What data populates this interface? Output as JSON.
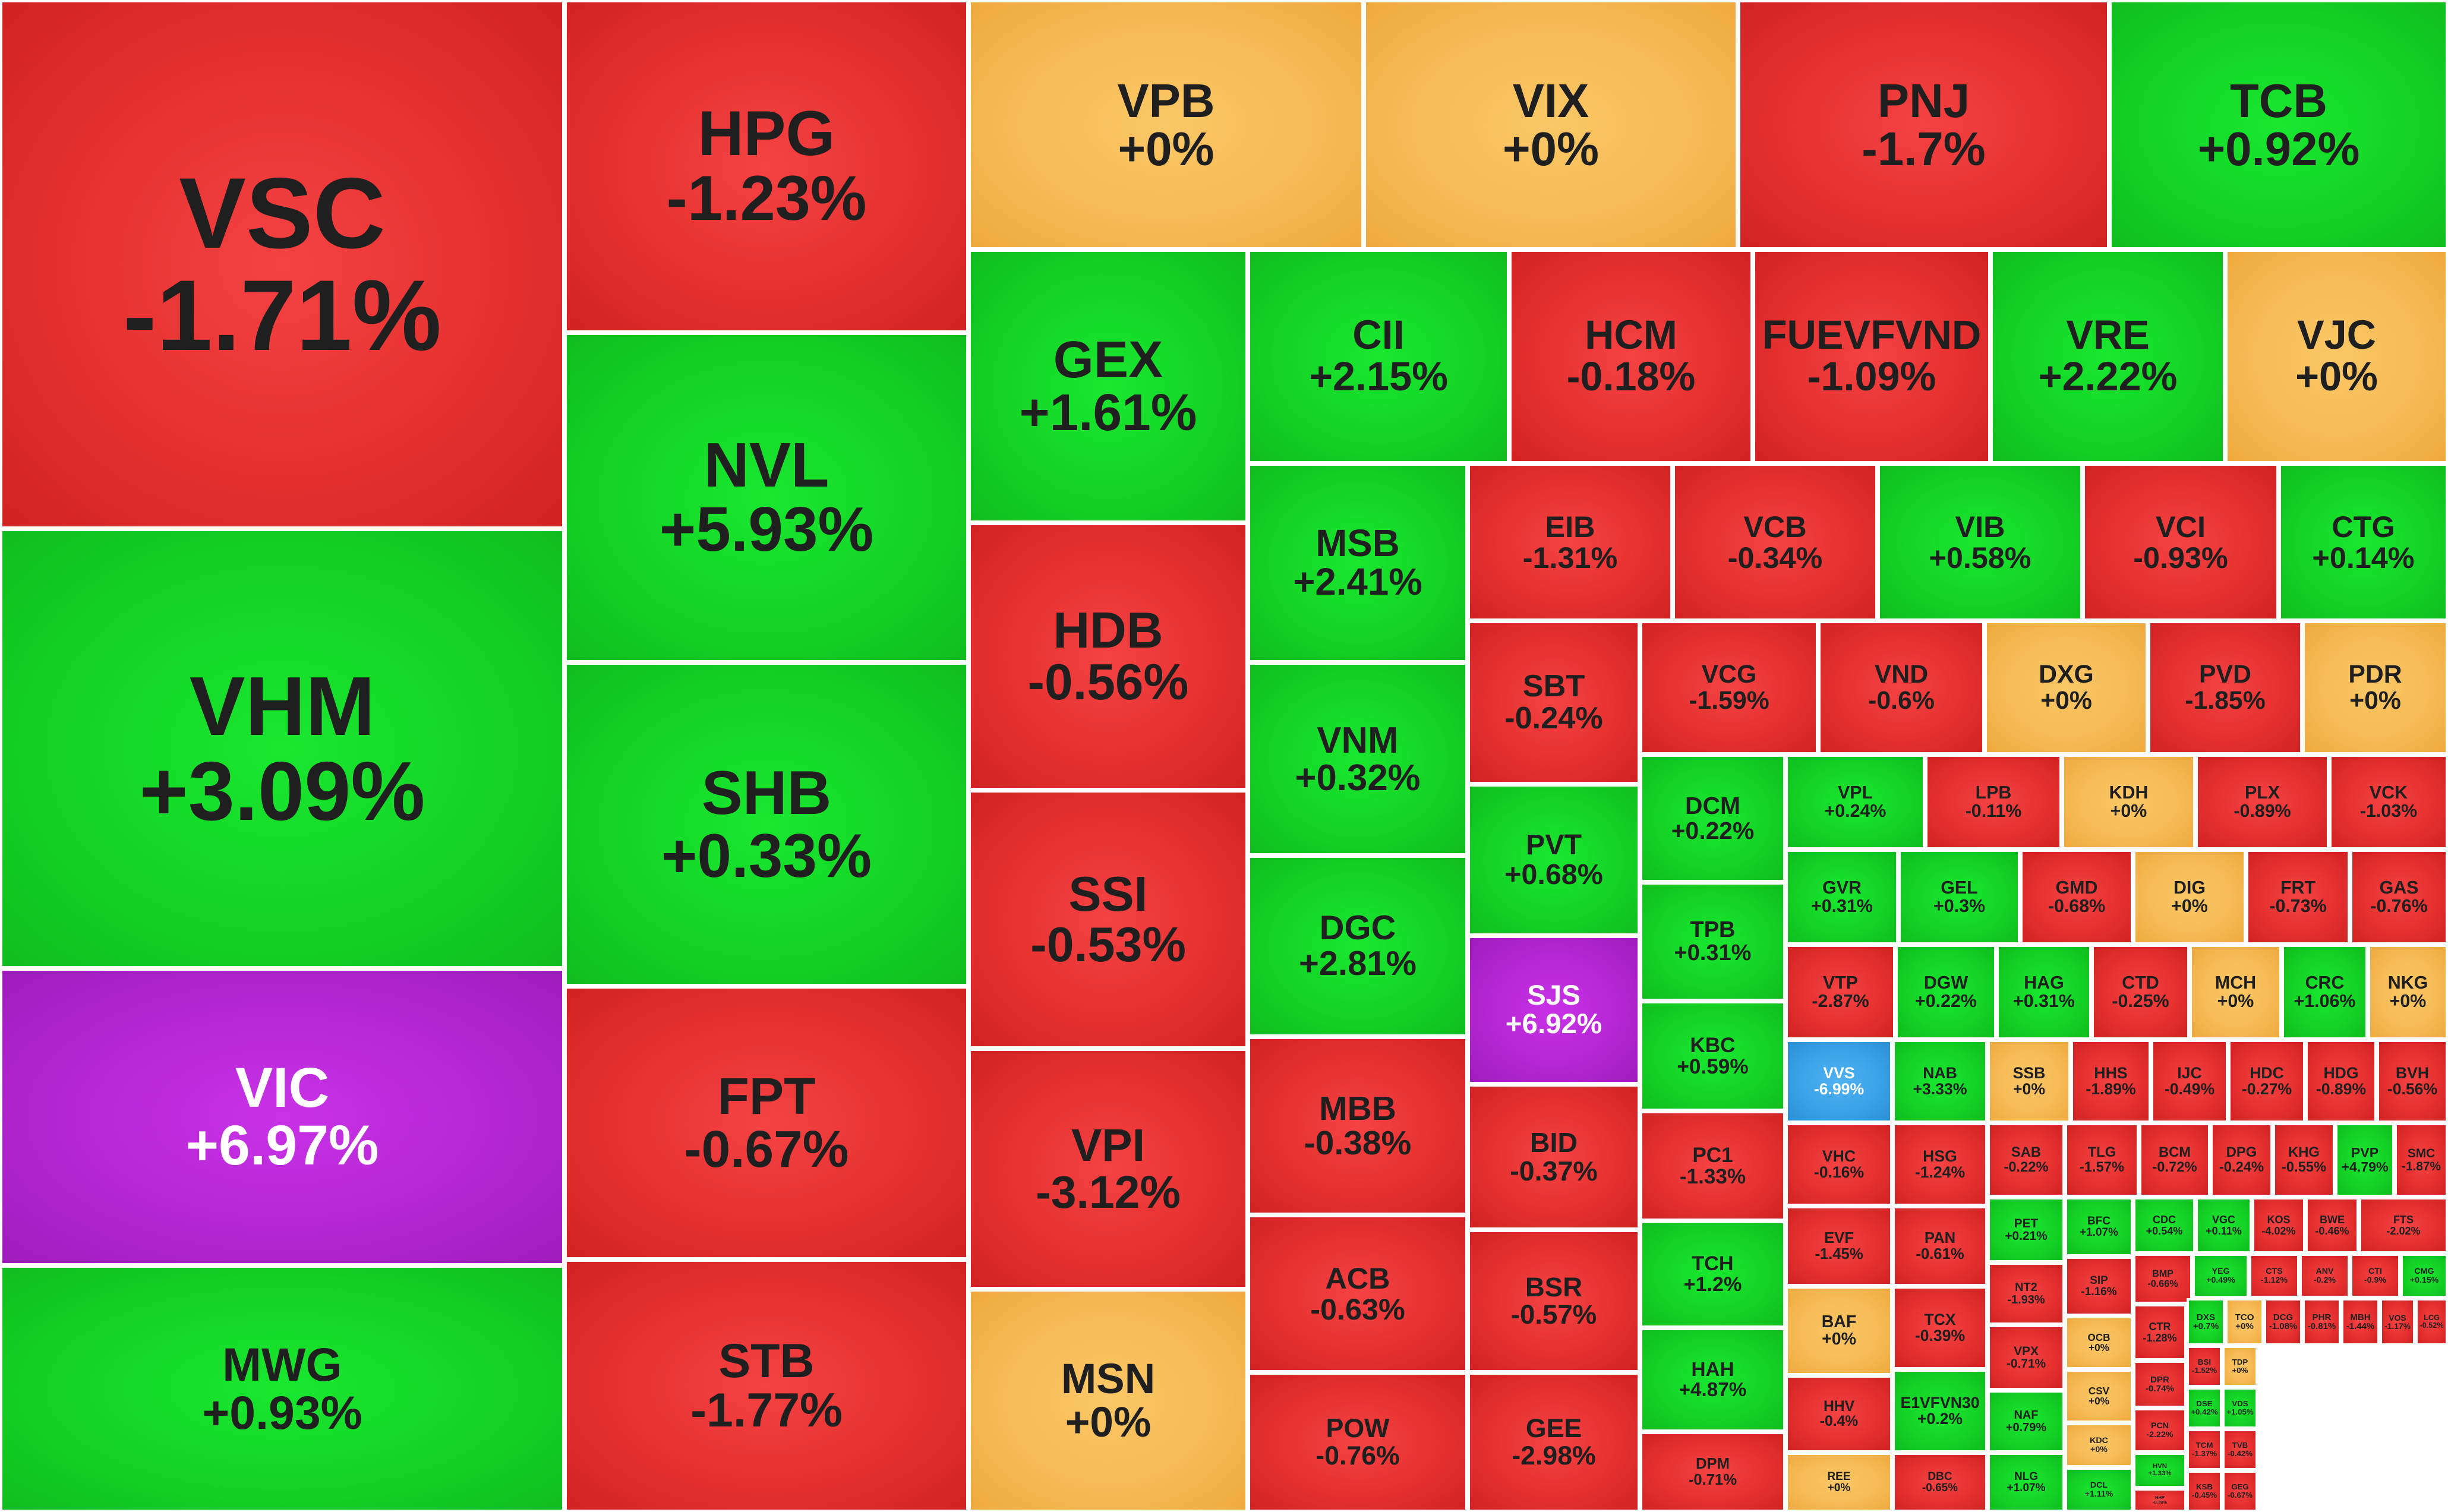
{
  "chart_data": {
    "type": "treemap",
    "title": "",
    "colors": {
      "positive": "#14d326",
      "negative": "#e63030",
      "unchanged": "#f6bb55",
      "ceiling": "#b526d4",
      "floor": "#3aa3e8"
    },
    "tiles": [
      {
        "ticker": "VSC",
        "change": "-1.71%"
      },
      {
        "ticker": "VHM",
        "change": "+3.09%"
      },
      {
        "ticker": "VIC",
        "change": "+6.97%"
      },
      {
        "ticker": "MWG",
        "change": "+0.93%"
      },
      {
        "ticker": "HPG",
        "change": "-1.23%"
      },
      {
        "ticker": "NVL",
        "change": "+5.93%"
      },
      {
        "ticker": "SHB",
        "change": "+0.33%"
      },
      {
        "ticker": "FPT",
        "change": "-0.67%"
      },
      {
        "ticker": "STB",
        "change": "-1.77%"
      },
      {
        "ticker": "VPB",
        "change": "+0%"
      },
      {
        "ticker": "VIX",
        "change": "+0%"
      },
      {
        "ticker": "PNJ",
        "change": "-1.7%"
      },
      {
        "ticker": "TCB",
        "change": "+0.92%"
      },
      {
        "ticker": "GEX",
        "change": "+1.61%"
      },
      {
        "ticker": "HDB",
        "change": "-0.56%"
      },
      {
        "ticker": "SSI",
        "change": "-0.53%"
      },
      {
        "ticker": "VPI",
        "change": "-3.12%"
      },
      {
        "ticker": "MSN",
        "change": "+0%"
      },
      {
        "ticker": "CII",
        "change": "+2.15%"
      },
      {
        "ticker": "HCM",
        "change": "-0.18%"
      },
      {
        "ticker": "FUEVFVND",
        "change": "-1.09%"
      },
      {
        "ticker": "VRE",
        "change": "+2.22%"
      },
      {
        "ticker": "VJC",
        "change": "+0%"
      },
      {
        "ticker": "MSB",
        "change": "+2.41%"
      },
      {
        "ticker": "VNM",
        "change": "+0.32%"
      },
      {
        "ticker": "DGC",
        "change": "+2.81%"
      },
      {
        "ticker": "MBB",
        "change": "-0.38%"
      },
      {
        "ticker": "ACB",
        "change": "-0.63%"
      },
      {
        "ticker": "POW",
        "change": "-0.76%"
      },
      {
        "ticker": "EIB",
        "change": "-1.31%"
      },
      {
        "ticker": "VCB",
        "change": "-0.34%"
      },
      {
        "ticker": "VIB",
        "change": "+0.58%"
      },
      {
        "ticker": "VCI",
        "change": "-0.93%"
      },
      {
        "ticker": "CTG",
        "change": "+0.14%"
      },
      {
        "ticker": "SBT",
        "change": "-0.24%"
      },
      {
        "ticker": "PVT",
        "change": "+0.68%"
      },
      {
        "ticker": "SJS",
        "change": "+6.92%"
      },
      {
        "ticker": "BID",
        "change": "-0.37%"
      },
      {
        "ticker": "BSR",
        "change": "-0.57%"
      },
      {
        "ticker": "GEE",
        "change": "-2.98%"
      },
      {
        "ticker": "VCG",
        "change": "-1.59%"
      },
      {
        "ticker": "VND",
        "change": "-0.6%"
      },
      {
        "ticker": "DXG",
        "change": "+0%"
      },
      {
        "ticker": "PVD",
        "change": "-1.85%"
      },
      {
        "ticker": "PDR",
        "change": "+0%"
      },
      {
        "ticker": "DCM",
        "change": "+0.22%"
      },
      {
        "ticker": "TPB",
        "change": "+0.31%"
      },
      {
        "ticker": "KBC",
        "change": "+0.59%"
      },
      {
        "ticker": "PC1",
        "change": "-1.33%"
      },
      {
        "ticker": "TCH",
        "change": "+1.2%"
      },
      {
        "ticker": "HAH",
        "change": "+4.87%"
      },
      {
        "ticker": "DPM",
        "change": "-0.71%"
      },
      {
        "ticker": "VPL",
        "change": "+0.24%"
      },
      {
        "ticker": "LPB",
        "change": "-0.11%"
      },
      {
        "ticker": "KDH",
        "change": "+0%"
      },
      {
        "ticker": "PLX",
        "change": "-0.89%"
      },
      {
        "ticker": "VCK",
        "change": "-1.03%"
      },
      {
        "ticker": "GVR",
        "change": "+0.31%"
      },
      {
        "ticker": "GEL",
        "change": "+0.3%"
      },
      {
        "ticker": "GMD",
        "change": "-0.68%"
      },
      {
        "ticker": "DIG",
        "change": "+0%"
      },
      {
        "ticker": "FRT",
        "change": "-0.73%"
      },
      {
        "ticker": "GAS",
        "change": "-0.76%"
      },
      {
        "ticker": "VTP",
        "change": "-2.87%"
      },
      {
        "ticker": "DGW",
        "change": "+0.22%"
      },
      {
        "ticker": "HAG",
        "change": "+0.31%"
      },
      {
        "ticker": "CTD",
        "change": "-0.25%"
      },
      {
        "ticker": "MCH",
        "change": "+0%"
      },
      {
        "ticker": "CRC",
        "change": "+1.06%"
      },
      {
        "ticker": "NKG",
        "change": "+0%"
      },
      {
        "ticker": "VVS",
        "change": "-6.99%"
      },
      {
        "ticker": "NAB",
        "change": "+3.33%"
      },
      {
        "ticker": "SSB",
        "change": "+0%"
      },
      {
        "ticker": "HHS",
        "change": "-1.89%"
      },
      {
        "ticker": "IJC",
        "change": "-0.49%"
      },
      {
        "ticker": "HDC",
        "change": "-0.27%"
      },
      {
        "ticker": "HDG",
        "change": "-0.89%"
      },
      {
        "ticker": "BVH",
        "change": "-0.56%"
      },
      {
        "ticker": "VHC",
        "change": "-0.16%"
      },
      {
        "ticker": "HSG",
        "change": "-1.24%"
      },
      {
        "ticker": "SAB",
        "change": "-0.22%"
      },
      {
        "ticker": "TLG",
        "change": "-1.57%"
      },
      {
        "ticker": "BCM",
        "change": "-0.72%"
      },
      {
        "ticker": "DPG",
        "change": "-0.24%"
      },
      {
        "ticker": "KHG",
        "change": "-0.55%"
      },
      {
        "ticker": "PVP",
        "change": "+4.79%"
      },
      {
        "ticker": "SMC",
        "change": "-1.87%"
      },
      {
        "ticker": "EVF",
        "change": "-1.45%"
      },
      {
        "ticker": "PAN",
        "change": "-0.61%"
      },
      {
        "ticker": "PET",
        "change": "+0.21%"
      },
      {
        "ticker": "BFC",
        "change": "+1.07%"
      },
      {
        "ticker": "CDC",
        "change": "+0.54%"
      },
      {
        "ticker": "VGC",
        "change": "+0.11%"
      },
      {
        "ticker": "KOS",
        "change": "-4.02%"
      },
      {
        "ticker": "BWE",
        "change": "-0.46%"
      },
      {
        "ticker": "FTS",
        "change": "-2.02%"
      },
      {
        "ticker": "BAF",
        "change": "+0%"
      },
      {
        "ticker": "TCX",
        "change": "-0.39%"
      },
      {
        "ticker": "NT2",
        "change": "-1.93%"
      },
      {
        "ticker": "SIP",
        "change": "-1.16%"
      },
      {
        "ticker": "BMP",
        "change": "-0.66%"
      },
      {
        "ticker": "YEG",
        "change": "+0.49%"
      },
      {
        "ticker": "CTS",
        "change": "-1.12%"
      },
      {
        "ticker": "ANV",
        "change": "-0.2%"
      },
      {
        "ticker": "CTI",
        "change": "-0.9%"
      },
      {
        "ticker": "CMG",
        "change": "+0.15%"
      },
      {
        "ticker": "OCB",
        "change": "+0%"
      },
      {
        "ticker": "CSV",
        "change": "+0%"
      },
      {
        "ticker": "HHV",
        "change": "-0.4%"
      },
      {
        "ticker": "E1VFVN30",
        "change": "+0.2%"
      },
      {
        "ticker": "VPX",
        "change": "-0.71%"
      },
      {
        "ticker": "KDC",
        "change": "+0%"
      },
      {
        "ticker": "CTR",
        "change": "-1.28%"
      },
      {
        "ticker": "NAF",
        "change": "+0.79%"
      },
      {
        "ticker": "DPR",
        "change": "-0.74%"
      },
      {
        "ticker": "DCL",
        "change": "+1.11%"
      },
      {
        "ticker": "PCN",
        "change": "-2.22%"
      },
      {
        "ticker": "REE",
        "change": "+0%"
      },
      {
        "ticker": "DBC",
        "change": "-0.65%"
      },
      {
        "ticker": "NLG",
        "change": "+1.07%"
      },
      {
        "ticker": "ORS",
        "change": "+0%"
      },
      {
        "ticker": "HVN",
        "change": "+1.33%"
      },
      {
        "ticker": "HHP",
        "change": "-0.78%"
      },
      {
        "ticker": "TCM",
        "change": "-1.37%"
      },
      {
        "ticker": "KSB",
        "change": "-0.45%"
      },
      {
        "ticker": "DXS",
        "change": "+0.7%"
      },
      {
        "ticker": "TCO",
        "change": "+0%"
      },
      {
        "ticker": "DCG",
        "change": "-1.08%"
      },
      {
        "ticker": "PHR",
        "change": "-0.81%"
      },
      {
        "ticker": "MBH",
        "change": "-1.44%"
      },
      {
        "ticker": "VOS",
        "change": "-1.17%"
      },
      {
        "ticker": "LCG",
        "change": "-0.52%"
      },
      {
        "ticker": "DSE",
        "change": "+0.42%"
      },
      {
        "ticker": "VDS",
        "change": "+1.05%"
      },
      {
        "ticker": "TVB",
        "change": "-0.42%"
      },
      {
        "ticker": "GEG",
        "change": "-0.67%"
      },
      {
        "ticker": "BSI",
        "change": "-1.52%"
      },
      {
        "ticker": "TDP",
        "change": "+0%"
      }
    ]
  }
}
